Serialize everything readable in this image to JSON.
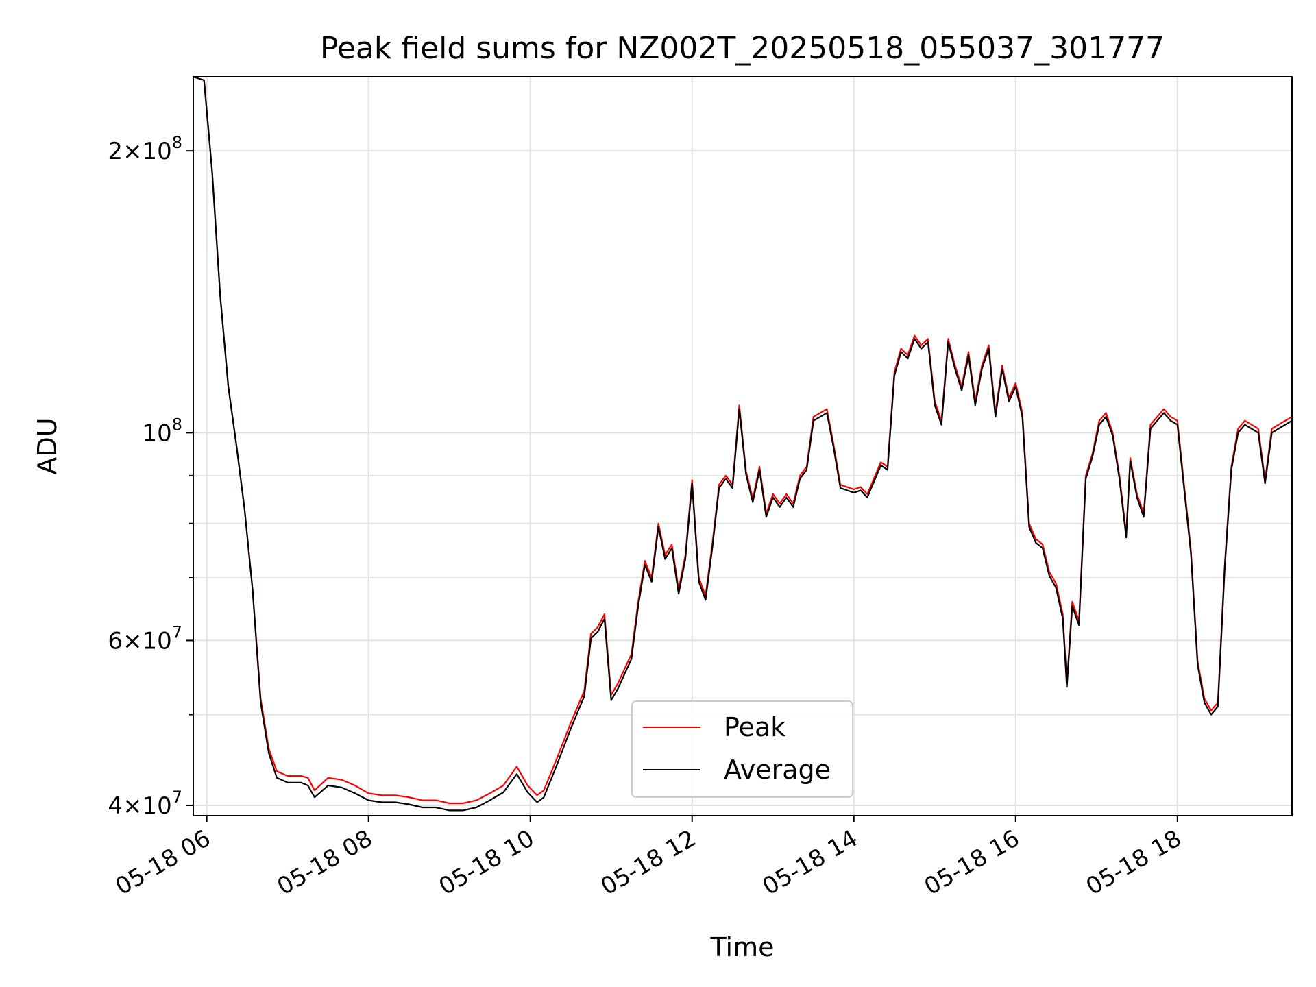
{
  "chart_data": {
    "type": "line",
    "title": "Peak field sums for NZ002T_20250518_055037_301777",
    "xlabel": "Time",
    "ylabel": "ADU",
    "x_tick_labels": [
      "05-18 06",
      "05-18 08",
      "05-18 10",
      "05-18 12",
      "05-18 14",
      "05-18 16",
      "05-18 18"
    ],
    "x_ticks": [
      "2025-05-18 06:00",
      "2025-05-18 08:00",
      "2025-05-18 10:00",
      "2025-05-18 12:00",
      "2025-05-18 14:00",
      "2025-05-18 16:00",
      "2025-05-18 18:00"
    ],
    "xlim": [
      "2025-05-18 05:50",
      "2025-05-18 19:25"
    ],
    "y_scale": "log",
    "ylim": [
      39000000,
      240000000
    ],
    "y_tick_labels": [
      "4×10^7",
      "6×10^7",
      "10^8",
      "2×10^8"
    ],
    "y_ticks": [
      40000000,
      60000000,
      100000000,
      200000000
    ],
    "y_minor_ticks": [
      50000000,
      70000000,
      80000000,
      90000000
    ],
    "grid": true,
    "legend_position": "lower center",
    "series": [
      {
        "name": "Peak",
        "color": "#ff0000",
        "points": [
          [
            "05:50",
            240000000
          ],
          [
            "05:58",
            238000000
          ],
          [
            "06:04",
            190000000
          ],
          [
            "06:10",
            140000000
          ],
          [
            "06:16",
            112000000
          ],
          [
            "06:22",
            97000000
          ],
          [
            "06:28",
            83000000
          ],
          [
            "06:34",
            68000000
          ],
          [
            "06:40",
            52000000
          ],
          [
            "06:46",
            46000000
          ],
          [
            "06:52",
            43500000
          ],
          [
            "07:00",
            43000000
          ],
          [
            "07:10",
            43000000
          ],
          [
            "07:15",
            42800000
          ],
          [
            "07:20",
            41500000
          ],
          [
            "07:30",
            42800000
          ],
          [
            "07:40",
            42600000
          ],
          [
            "07:50",
            42000000
          ],
          [
            "08:00",
            41200000
          ],
          [
            "08:10",
            41000000
          ],
          [
            "08:20",
            41000000
          ],
          [
            "08:30",
            40800000
          ],
          [
            "08:40",
            40500000
          ],
          [
            "08:50",
            40500000
          ],
          [
            "09:00",
            40200000
          ],
          [
            "09:10",
            40200000
          ],
          [
            "09:20",
            40500000
          ],
          [
            "09:30",
            41200000
          ],
          [
            "09:40",
            42000000
          ],
          [
            "09:50",
            44000000
          ],
          [
            "09:58",
            42000000
          ],
          [
            "10:05",
            41000000
          ],
          [
            "10:10",
            41500000
          ],
          [
            "10:20",
            45000000
          ],
          [
            "10:30",
            49000000
          ],
          [
            "10:40",
            53000000
          ],
          [
            "10:45",
            61000000
          ],
          [
            "10:50",
            62000000
          ],
          [
            "10:55",
            64000000
          ],
          [
            "11:00",
            52500000
          ],
          [
            "11:05",
            54000000
          ],
          [
            "11:10",
            56000000
          ],
          [
            "11:15",
            58000000
          ],
          [
            "11:20",
            66000000
          ],
          [
            "11:25",
            73000000
          ],
          [
            "11:30",
            70000000
          ],
          [
            "11:35",
            80000000
          ],
          [
            "11:40",
            74000000
          ],
          [
            "11:45",
            76000000
          ],
          [
            "11:50",
            68000000
          ],
          [
            "11:55",
            74000000
          ],
          [
            "12:00",
            89000000
          ],
          [
            "12:05",
            70000000
          ],
          [
            "12:10",
            67000000
          ],
          [
            "12:15",
            76000000
          ],
          [
            "12:20",
            88000000
          ],
          [
            "12:25",
            90000000
          ],
          [
            "12:30",
            88000000
          ],
          [
            "12:35",
            107000000
          ],
          [
            "12:40",
            91000000
          ],
          [
            "12:45",
            85000000
          ],
          [
            "12:50",
            92000000
          ],
          [
            "12:55",
            82000000
          ],
          [
            "13:00",
            86000000
          ],
          [
            "13:05",
            84000000
          ],
          [
            "13:10",
            86000000
          ],
          [
            "13:15",
            84000000
          ],
          [
            "13:20",
            90000000
          ],
          [
            "13:25",
            92000000
          ],
          [
            "13:30",
            104000000
          ],
          [
            "13:35",
            105000000
          ],
          [
            "13:40",
            106000000
          ],
          [
            "13:45",
            97000000
          ],
          [
            "13:50",
            88000000
          ],
          [
            "14:00",
            87000000
          ],
          [
            "14:05",
            87500000
          ],
          [
            "14:10",
            86000000
          ],
          [
            "14:20",
            93000000
          ],
          [
            "14:25",
            92000000
          ],
          [
            "14:30",
            116000000
          ],
          [
            "14:35",
            123000000
          ],
          [
            "14:40",
            121000000
          ],
          [
            "14:45",
            127000000
          ],
          [
            "14:50",
            124000000
          ],
          [
            "14:55",
            126000000
          ],
          [
            "15:00",
            108000000
          ],
          [
            "15:05",
            103000000
          ],
          [
            "15:10",
            126000000
          ],
          [
            "15:15",
            118000000
          ],
          [
            "15:20",
            112000000
          ],
          [
            "15:25",
            122000000
          ],
          [
            "15:30",
            108000000
          ],
          [
            "15:35",
            118000000
          ],
          [
            "15:40",
            124000000
          ],
          [
            "15:45",
            105000000
          ],
          [
            "15:50",
            118000000
          ],
          [
            "15:55",
            109000000
          ],
          [
            "16:00",
            113000000
          ],
          [
            "16:05",
            105000000
          ],
          [
            "16:10",
            80000000
          ],
          [
            "16:15",
            77000000
          ],
          [
            "16:20",
            76000000
          ],
          [
            "16:25",
            71000000
          ],
          [
            "16:30",
            69000000
          ],
          [
            "16:35",
            64000000
          ],
          [
            "16:38",
            54000000
          ],
          [
            "16:42",
            66000000
          ],
          [
            "16:47",
            63000000
          ],
          [
            "16:52",
            90000000
          ],
          [
            "16:57",
            95000000
          ],
          [
            "17:02",
            103000000
          ],
          [
            "17:07",
            105000000
          ],
          [
            "17:12",
            100000000
          ],
          [
            "17:17",
            90000000
          ],
          [
            "17:22",
            78000000
          ],
          [
            "17:25",
            94000000
          ],
          [
            "17:30",
            86000000
          ],
          [
            "17:35",
            82000000
          ],
          [
            "17:40",
            102000000
          ],
          [
            "17:45",
            104000000
          ],
          [
            "17:50",
            106000000
          ],
          [
            "17:55",
            104000000
          ],
          [
            "18:00",
            103000000
          ],
          [
            "18:10",
            75000000
          ],
          [
            "18:15",
            57000000
          ],
          [
            "18:20",
            52000000
          ],
          [
            "18:25",
            50500000
          ],
          [
            "18:30",
            51500000
          ],
          [
            "18:35",
            72000000
          ],
          [
            "18:40",
            92000000
          ],
          [
            "18:45",
            101000000
          ],
          [
            "18:50",
            103000000
          ],
          [
            "18:55",
            102000000
          ],
          [
            "19:00",
            101000000
          ],
          [
            "19:05",
            89000000
          ],
          [
            "19:10",
            101000000
          ],
          [
            "19:15",
            102000000
          ],
          [
            "19:20",
            103000000
          ],
          [
            "19:25",
            104000000
          ]
        ]
      },
      {
        "name": "Average",
        "color": "#000000",
        "points": [
          [
            "05:50",
            240000000
          ],
          [
            "05:58",
            238000000
          ],
          [
            "06:04",
            190000000
          ],
          [
            "06:10",
            140000000
          ],
          [
            "06:16",
            112000000
          ],
          [
            "06:22",
            97000000
          ],
          [
            "06:28",
            83000000
          ],
          [
            "06:34",
            68000000
          ],
          [
            "06:40",
            51500000
          ],
          [
            "06:46",
            45500000
          ],
          [
            "06:52",
            42800000
          ],
          [
            "07:00",
            42300000
          ],
          [
            "07:10",
            42300000
          ],
          [
            "07:15",
            42000000
          ],
          [
            "07:20",
            40800000
          ],
          [
            "07:30",
            42000000
          ],
          [
            "07:40",
            41800000
          ],
          [
            "07:50",
            41200000
          ],
          [
            "08:00",
            40500000
          ],
          [
            "08:10",
            40300000
          ],
          [
            "08:20",
            40300000
          ],
          [
            "08:30",
            40100000
          ],
          [
            "08:40",
            39800000
          ],
          [
            "08:50",
            39800000
          ],
          [
            "09:00",
            39500000
          ],
          [
            "09:10",
            39500000
          ],
          [
            "09:20",
            39800000
          ],
          [
            "09:30",
            40500000
          ],
          [
            "09:40",
            41300000
          ],
          [
            "09:50",
            43200000
          ],
          [
            "09:58",
            41300000
          ],
          [
            "10:05",
            40300000
          ],
          [
            "10:10",
            40800000
          ],
          [
            "10:20",
            44300000
          ],
          [
            "10:30",
            48300000
          ],
          [
            "10:40",
            52300000
          ],
          [
            "10:45",
            60300000
          ],
          [
            "10:50",
            61300000
          ],
          [
            "10:55",
            63300000
          ],
          [
            "11:00",
            51800000
          ],
          [
            "11:05",
            53300000
          ],
          [
            "11:10",
            55300000
          ],
          [
            "11:15",
            57300000
          ],
          [
            "11:20",
            65300000
          ],
          [
            "11:25",
            72300000
          ],
          [
            "11:30",
            69300000
          ],
          [
            "11:35",
            79300000
          ],
          [
            "11:40",
            73300000
          ],
          [
            "11:45",
            75300000
          ],
          [
            "11:50",
            67300000
          ],
          [
            "11:55",
            73300000
          ],
          [
            "12:00",
            88300000
          ],
          [
            "12:05",
            69300000
          ],
          [
            "12:10",
            66300000
          ],
          [
            "12:15",
            75300000
          ],
          [
            "12:20",
            87300000
          ],
          [
            "12:25",
            89300000
          ],
          [
            "12:30",
            87300000
          ],
          [
            "12:35",
            106000000
          ],
          [
            "12:40",
            90300000
          ],
          [
            "12:45",
            84300000
          ],
          [
            "12:50",
            91300000
          ],
          [
            "12:55",
            81300000
          ],
          [
            "13:00",
            85300000
          ],
          [
            "13:05",
            83300000
          ],
          [
            "13:10",
            85300000
          ],
          [
            "13:15",
            83300000
          ],
          [
            "13:20",
            89300000
          ],
          [
            "13:25",
            91300000
          ],
          [
            "13:30",
            103000000
          ],
          [
            "13:35",
            104000000
          ],
          [
            "13:40",
            105000000
          ],
          [
            "13:45",
            96300000
          ],
          [
            "13:50",
            87300000
          ],
          [
            "14:00",
            86300000
          ],
          [
            "14:05",
            86800000
          ],
          [
            "14:10",
            85300000
          ],
          [
            "14:20",
            92300000
          ],
          [
            "14:25",
            91300000
          ],
          [
            "14:30",
            115000000
          ],
          [
            "14:35",
            122000000
          ],
          [
            "14:40",
            120000000
          ],
          [
            "14:45",
            126000000
          ],
          [
            "14:50",
            123000000
          ],
          [
            "14:55",
            125000000
          ],
          [
            "15:00",
            107000000
          ],
          [
            "15:05",
            102000000
          ],
          [
            "15:10",
            125000000
          ],
          [
            "15:15",
            117000000
          ],
          [
            "15:20",
            111000000
          ],
          [
            "15:25",
            121000000
          ],
          [
            "15:30",
            107000000
          ],
          [
            "15:35",
            117000000
          ],
          [
            "15:40",
            123000000
          ],
          [
            "15:45",
            104000000
          ],
          [
            "15:50",
            117000000
          ],
          [
            "15:55",
            108000000
          ],
          [
            "16:00",
            112000000
          ],
          [
            "16:05",
            104000000
          ],
          [
            "16:10",
            79300000
          ],
          [
            "16:15",
            76300000
          ],
          [
            "16:20",
            75300000
          ],
          [
            "16:25",
            70300000
          ],
          [
            "16:30",
            68300000
          ],
          [
            "16:35",
            63300000
          ],
          [
            "16:38",
            53500000
          ],
          [
            "16:42",
            65300000
          ],
          [
            "16:47",
            62300000
          ],
          [
            "16:52",
            89300000
          ],
          [
            "16:57",
            94300000
          ],
          [
            "17:02",
            102000000
          ],
          [
            "17:07",
            104000000
          ],
          [
            "17:12",
            99300000
          ],
          [
            "17:17",
            89300000
          ],
          [
            "17:22",
            77300000
          ],
          [
            "17:25",
            93300000
          ],
          [
            "17:30",
            85300000
          ],
          [
            "17:35",
            81300000
          ],
          [
            "17:40",
            101000000
          ],
          [
            "17:45",
            103000000
          ],
          [
            "17:50",
            105000000
          ],
          [
            "17:55",
            103000000
          ],
          [
            "18:00",
            102000000
          ],
          [
            "18:10",
            74300000
          ],
          [
            "18:15",
            56500000
          ],
          [
            "18:20",
            51500000
          ],
          [
            "18:25",
            50000000
          ],
          [
            "18:30",
            51000000
          ],
          [
            "18:35",
            71300000
          ],
          [
            "18:40",
            91300000
          ],
          [
            "18:45",
            100000000
          ],
          [
            "18:50",
            102000000
          ],
          [
            "18:55",
            101000000
          ],
          [
            "19:00",
            100000000
          ],
          [
            "19:05",
            88300000
          ],
          [
            "19:10",
            100000000
          ],
          [
            "19:15",
            101000000
          ],
          [
            "19:20",
            102000000
          ],
          [
            "19:25",
            103000000
          ]
        ]
      }
    ]
  }
}
